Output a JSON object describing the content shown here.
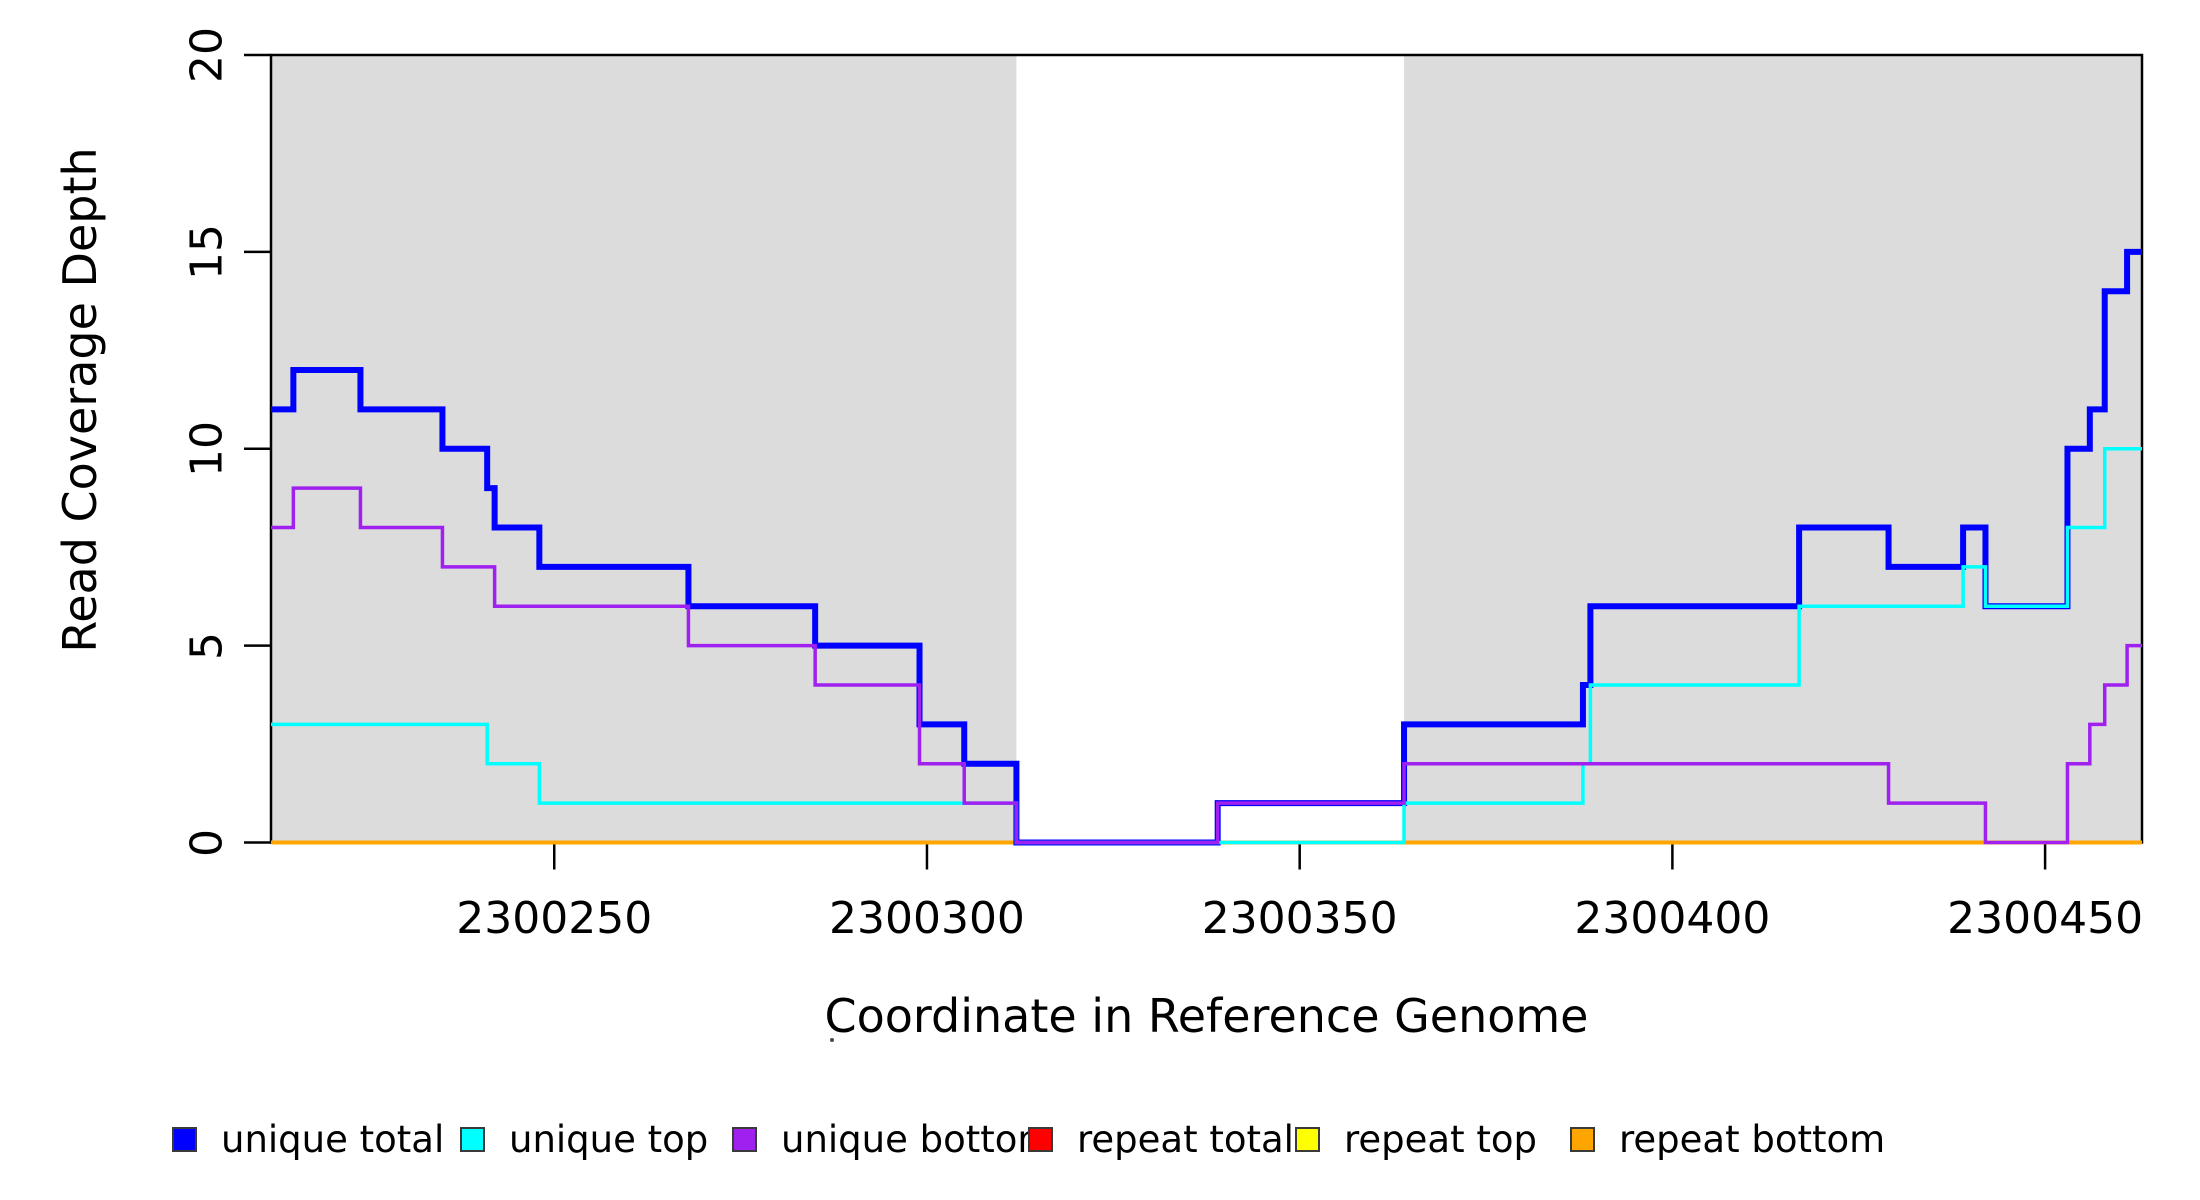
{
  "chart_data": {
    "type": "line",
    "subtype": "step",
    "title": "",
    "xlabel": "Coordinate in Reference Genome",
    "ylabel": "Read Coverage Depth",
    "xlim": [
      2300212,
      2300463
    ],
    "ylim": [
      0,
      20
    ],
    "x_ticks": [
      "2300250",
      "2300300",
      "2300350",
      "2300400",
      "2300450"
    ],
    "x_tick_values": [
      2300250,
      2300300,
      2300350,
      2300400,
      2300450
    ],
    "y_ticks": [
      "0",
      "5",
      "10",
      "15",
      "20"
    ],
    "y_tick_values": [
      0,
      5,
      10,
      15,
      20
    ],
    "grid": false,
    "legend_position": "bottom",
    "shading": {
      "color": "#DCDCDC",
      "regions": [
        [
          2300212,
          2300312
        ],
        [
          2300364,
          2300463
        ]
      ]
    },
    "series": [
      {
        "name": "unique total",
        "color": "#0000FF",
        "line_width": 6,
        "start": 11,
        "steps": [
          [
            2300215,
            12
          ],
          [
            2300224,
            11
          ],
          [
            2300235,
            10
          ],
          [
            2300241,
            9
          ],
          [
            2300242,
            8
          ],
          [
            2300248,
            7
          ],
          [
            2300268,
            6
          ],
          [
            2300285,
            5
          ],
          [
            2300299,
            3
          ],
          [
            2300305,
            2
          ],
          [
            2300312,
            0
          ],
          [
            2300339,
            1
          ],
          [
            2300364,
            3
          ],
          [
            2300388,
            4
          ],
          [
            2300389,
            6
          ],
          [
            2300417,
            8
          ],
          [
            2300429,
            7
          ],
          [
            2300439,
            8
          ],
          [
            2300442,
            6
          ],
          [
            2300453,
            10
          ],
          [
            2300456,
            11
          ],
          [
            2300458,
            14
          ],
          [
            2300461,
            15
          ]
        ]
      },
      {
        "name": "unique top",
        "color": "#00FFFF",
        "line_width": 3.5,
        "start": 3,
        "steps": [
          [
            2300241,
            2
          ],
          [
            2300248,
            1
          ],
          [
            2300312,
            0
          ],
          [
            2300364,
            1
          ],
          [
            2300388,
            2
          ],
          [
            2300389,
            4
          ],
          [
            2300417,
            6
          ],
          [
            2300439,
            7
          ],
          [
            2300442,
            6
          ],
          [
            2300453,
            8
          ],
          [
            2300458,
            10
          ]
        ]
      },
      {
        "name": "unique bottom",
        "color": "#A020F0",
        "line_width": 3.5,
        "start": 8,
        "steps": [
          [
            2300215,
            9
          ],
          [
            2300224,
            8
          ],
          [
            2300235,
            7
          ],
          [
            2300242,
            6
          ],
          [
            2300268,
            5
          ],
          [
            2300285,
            4
          ],
          [
            2300299,
            2
          ],
          [
            2300305,
            1
          ],
          [
            2300312,
            0
          ],
          [
            2300339,
            1
          ],
          [
            2300364,
            2
          ],
          [
            2300429,
            1
          ],
          [
            2300442,
            0
          ],
          [
            2300453,
            2
          ],
          [
            2300456,
            3
          ],
          [
            2300458,
            4
          ],
          [
            2300461,
            5
          ]
        ]
      },
      {
        "name": "repeat total",
        "color": "#FF0000",
        "line_width": 4,
        "start": 0,
        "steps": []
      },
      {
        "name": "repeat top",
        "color": "#FFFF00",
        "line_width": 4,
        "start": 0,
        "steps": []
      },
      {
        "name": "repeat bottom",
        "color": "#FFA500",
        "line_width": 4,
        "start": 0,
        "steps": []
      }
    ],
    "draw_order": [
      "repeat total",
      "repeat top",
      "repeat bottom",
      "unique total",
      "unique top",
      "unique bottom"
    ],
    "legend_order": [
      "unique total",
      "unique top",
      "unique bottom",
      "repeat total",
      "repeat top",
      "repeat bottom"
    ]
  }
}
